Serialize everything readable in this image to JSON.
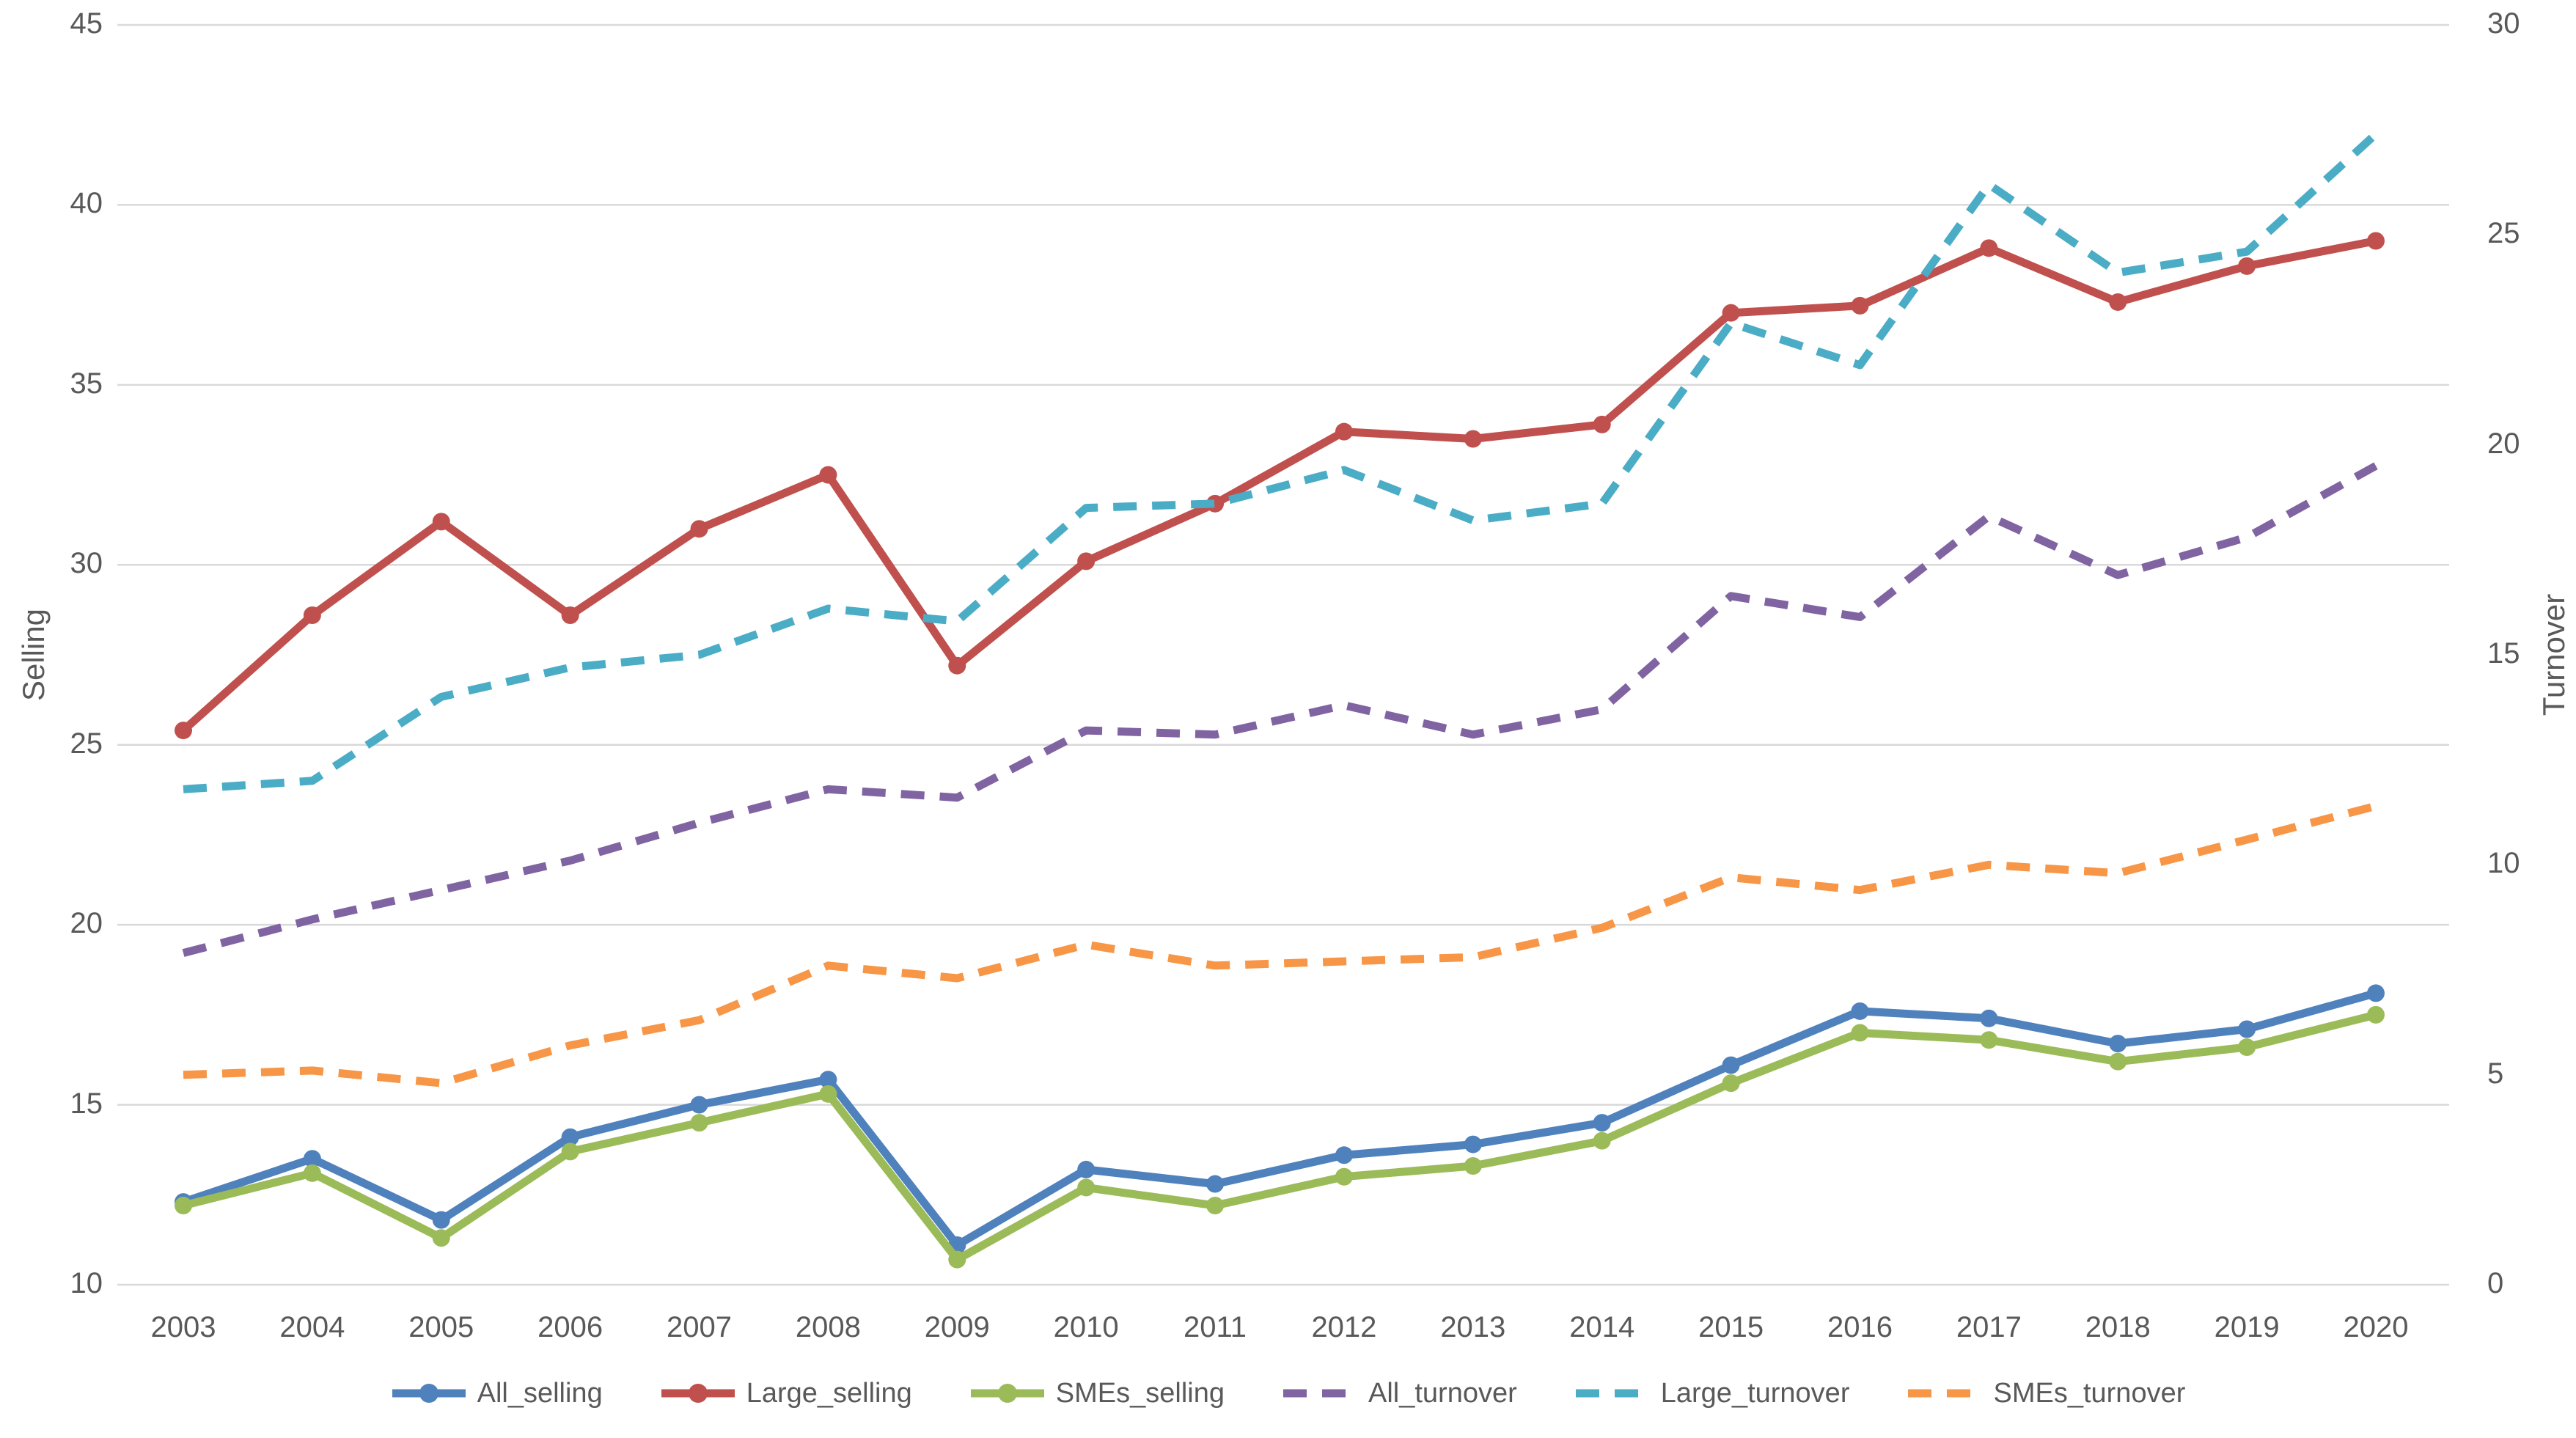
{
  "colors": {
    "text": "#595959",
    "gridline": "#D9D9D9",
    "background": "#FFFFFF",
    "all_selling": "#4F81BD",
    "large_selling": "#C0504D",
    "smes_selling": "#9BBB59",
    "all_turnover": "#8064A2",
    "large_turnover": "#4BACC6",
    "smes_turnover": "#F79646"
  },
  "chart_data": {
    "type": "line",
    "title": "",
    "categories": [
      "2003",
      "2004",
      "2005",
      "2006",
      "2007",
      "2008",
      "2009",
      "2010",
      "2011",
      "2012",
      "2013",
      "2014",
      "2015",
      "2016",
      "2017",
      "2018",
      "2019",
      "2020"
    ],
    "axes": {
      "left": {
        "label": "Selling",
        "min": 10,
        "max": 45,
        "tick_step": 5,
        "ticks": [
          "45",
          "40",
          "35",
          "30",
          "25",
          "20",
          "15",
          "10"
        ]
      },
      "right": {
        "label": "Turnover",
        "min": 0,
        "max": 30,
        "tick_step": 5,
        "ticks": [
          "30",
          "25",
          "20",
          "15",
          "10",
          "5",
          "0"
        ]
      }
    },
    "grid": true,
    "legend_position": "bottom",
    "series": [
      {
        "name": "All_selling",
        "axis": "left",
        "style": "solid",
        "marker": "circle",
        "color": "#4F81BD",
        "values": [
          12.3,
          13.5,
          11.8,
          14.1,
          15.0,
          15.7,
          11.1,
          13.2,
          12.8,
          13.6,
          13.9,
          14.5,
          16.1,
          17.6,
          17.4,
          16.7,
          17.1,
          18.1
        ]
      },
      {
        "name": "Large_selling",
        "axis": "left",
        "style": "solid",
        "marker": "circle",
        "color": "#C0504D",
        "values": [
          25.4,
          28.6,
          31.2,
          28.6,
          31.0,
          32.5,
          27.2,
          30.1,
          31.7,
          33.7,
          33.5,
          33.9,
          37.0,
          37.2,
          38.8,
          37.3,
          38.3,
          39.0
        ]
      },
      {
        "name": "SMEs_selling",
        "axis": "left",
        "style": "solid",
        "marker": "circle",
        "color": "#9BBB59",
        "values": [
          12.2,
          13.1,
          11.3,
          13.7,
          14.5,
          15.3,
          10.7,
          12.7,
          12.2,
          13.0,
          13.3,
          14.0,
          15.6,
          17.0,
          16.8,
          16.2,
          16.6,
          17.5
        ]
      },
      {
        "name": "All_turnover",
        "axis": "right",
        "style": "dashed",
        "marker": "none",
        "color": "#8064A2",
        "values": [
          7.9,
          8.7,
          9.4,
          10.1,
          11.0,
          11.8,
          11.6,
          13.2,
          13.1,
          13.8,
          13.1,
          13.7,
          16.4,
          15.9,
          18.3,
          16.9,
          17.8,
          19.5
        ]
      },
      {
        "name": "Large_turnover",
        "axis": "right",
        "style": "dashed",
        "marker": "none",
        "color": "#4BACC6",
        "values": [
          11.8,
          12.0,
          14.0,
          14.7,
          15.0,
          16.1,
          15.8,
          18.5,
          18.6,
          19.4,
          18.2,
          18.6,
          22.9,
          21.9,
          26.2,
          24.1,
          24.6,
          27.4
        ]
      },
      {
        "name": "SMEs_turnover",
        "axis": "right",
        "style": "dashed",
        "marker": "none",
        "color": "#F79646",
        "values": [
          5.0,
          5.1,
          4.8,
          5.7,
          6.3,
          7.6,
          7.3,
          8.1,
          7.6,
          7.7,
          7.8,
          8.5,
          9.7,
          9.4,
          10.0,
          9.8,
          10.6,
          11.4
        ]
      }
    ]
  }
}
